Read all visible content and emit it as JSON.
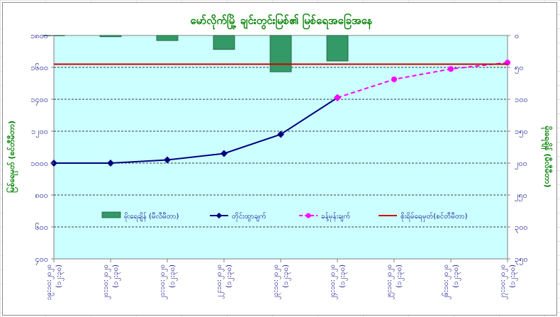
{
  "chart_data": {
    "type": "bar+line",
    "title": "မော်လိုက်မြို့ ချင်းတွင်းမြစ်၏ မြစ်ရေအခြေအနေ",
    "ylabel_left": "မြစ်ရေမှတ် (စင်တီမီတာ)",
    "ylabel_right": "မိုးရေချိန် (မီလီမီတာ)",
    "categories": [
      "၁၉:၁၀:၂၀၂၀\n(၁၂:၃၀)",
      "၂၀:၁၀:၂၀၂၀\n(၁၂:၃၀)",
      "၂၁:၁၀:၂၀၂၀\n(၁၂:၃၀)",
      "၂၂:၁၀:၂၀၂၀\n(၁၂:၃၀)",
      "၂၃:၁၀:၂၀၂၀\n(၁၂:၃၀)",
      "၂၄:၁၀:၂၀၂၀\n(၁၂:၃၀)",
      "၂၅:၁၀:၂၀၂၀\n(၁၂:၃၀)",
      "၂၆:၁၀:၂၀၂၀\n(၁၂:၃၀)",
      "၂၇:၁၀:၂၀၂၀\n(၁၂:၃၀)"
    ],
    "left_axis": {
      "min": 400,
      "max": 1800,
      "step": 200,
      "tick_labels": [
        "၄၀၀",
        "၆၀၀",
        "၈၀၀",
        "၁၀၀၀",
        "၁၂၀၀",
        "၁၄၀၀",
        "၁၆၀၀",
        "၁၈၀၀"
      ]
    },
    "right_axis": {
      "min": 0,
      "max": 350,
      "step": 50,
      "reversed": true,
      "tick_labels": [
        "၀",
        "၅၀",
        "၁၀၀",
        "၁၅၀",
        "၂၀၀",
        "၂၅၀",
        "၃၀၀",
        "၃၅၀"
      ]
    },
    "grid": "horizontal dashed",
    "legend_position": "inside-bottom",
    "series": [
      {
        "name": "မိုးရေချိန် (မီလီမီတာ)",
        "kind": "bar",
        "axis": "right",
        "color": "#339966",
        "values": [
          0,
          2,
          8,
          22,
          57,
          40,
          null,
          null,
          null
        ]
      },
      {
        "name": "တိုင်းထွာချက်",
        "kind": "line",
        "axis": "left",
        "color": "#000080",
        "values": [
          1000,
          1000,
          1020,
          1060,
          1180,
          1410,
          null,
          null,
          null
        ]
      },
      {
        "name": "ခန့်မှန်းချက်",
        "kind": "dashed-line",
        "axis": "left",
        "color": "#ff00ff",
        "values": [
          null,
          null,
          null,
          null,
          null,
          1410,
          1525,
          1590,
          1630
        ]
      },
      {
        "name": "စိုးရိမ်ရေမှတ်(စင်တီမီတာ)",
        "kind": "hline",
        "axis": "left",
        "color": "#cc0000",
        "value": 1620
      }
    ]
  }
}
